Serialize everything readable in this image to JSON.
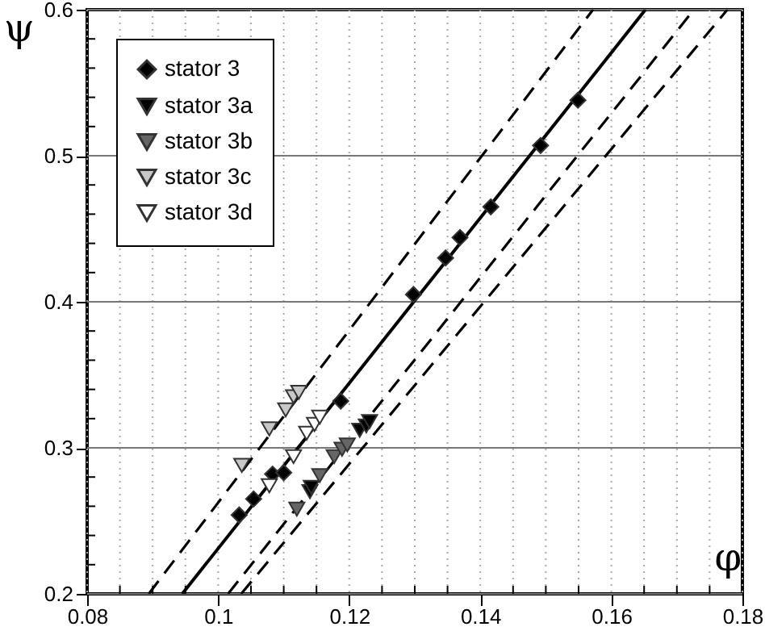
{
  "chart_data": {
    "type": "scatter",
    "xlabel": "φ",
    "ylabel": "ψ",
    "xlim": [
      0.08,
      0.18
    ],
    "ylim": [
      0.2,
      0.6
    ],
    "xticks": [
      0.08,
      {
        "value": 0.085,
        "label": null
      },
      {
        "value": 0.09,
        "label": null
      },
      {
        "value": 0.095,
        "label": null
      },
      0.1,
      {
        "value": 0.105,
        "label": null
      },
      {
        "value": 0.11,
        "label": null
      },
      {
        "value": 0.115,
        "label": null
      },
      0.12,
      {
        "value": 0.125,
        "label": null
      },
      {
        "value": 0.13,
        "label": null
      },
      {
        "value": 0.135,
        "label": null
      },
      0.14,
      {
        "value": 0.145,
        "label": null
      },
      {
        "value": 0.15,
        "label": null
      },
      {
        "value": 0.155,
        "label": null
      },
      0.16,
      {
        "value": 0.165,
        "label": null
      },
      {
        "value": 0.17,
        "label": null
      },
      {
        "value": 0.175,
        "label": null
      },
      0.18
    ],
    "yticks": [
      0.2,
      {
        "value": 0.22,
        "label": null
      },
      {
        "value": 0.24,
        "label": null
      },
      {
        "value": 0.26,
        "label": null
      },
      {
        "value": 0.28,
        "label": null
      },
      0.3,
      {
        "value": 0.32,
        "label": null
      },
      {
        "value": 0.34,
        "label": null
      },
      {
        "value": 0.36,
        "label": null
      },
      {
        "value": 0.38,
        "label": null
      },
      0.4,
      {
        "value": 0.42,
        "label": null
      },
      {
        "value": 0.44,
        "label": null
      },
      {
        "value": 0.46,
        "label": null
      },
      {
        "value": 0.48,
        "label": null
      },
      0.5,
      {
        "value": 0.52,
        "label": null
      },
      {
        "value": 0.54,
        "label": null
      },
      {
        "value": 0.56,
        "label": null
      },
      {
        "value": 0.58,
        "label": null
      },
      0.6
    ],
    "grid": true,
    "legend": "top left",
    "series": [
      {
        "type": "line",
        "color": "#000000",
        "line_style": "solid",
        "x": [
          0.0945,
          0.1652
        ],
        "values": [
          0.2,
          0.6
        ]
      },
      {
        "type": "line",
        "color": "#000000",
        "line_style": "dashed",
        "x": [
          0.0894,
          0.1572
        ],
        "values": [
          0.2,
          0.6
        ]
      },
      {
        "type": "line",
        "color": "#000000",
        "line_style": "dashed",
        "x": [
          0.1015,
          0.1726
        ],
        "values": [
          0.2,
          0.6
        ]
      },
      {
        "type": "line",
        "color": "#000000",
        "line_style": "dashed",
        "x": [
          0.1035,
          0.1777
        ],
        "values": [
          0.2,
          0.6
        ]
      },
      {
        "name": "stator 3",
        "marker": "diamond",
        "color": "#000000",
        "x": [
          0.1032,
          0.1054,
          0.1083,
          0.11,
          0.1187,
          0.1298,
          0.1347,
          0.1369,
          0.1416,
          0.1492,
          0.1549
        ],
        "values": [
          0.254,
          0.265,
          0.282,
          0.283,
          0.332,
          0.405,
          0.43,
          0.444,
          0.465,
          0.507,
          0.538
        ]
      },
      {
        "name": "stator 3a",
        "marker": "triangle",
        "color": "#000000",
        "x": [
          0.114,
          0.1142,
          0.1216,
          0.1226,
          0.1231
        ],
        "values": [
          0.27,
          0.273,
          0.312,
          0.315,
          0.318
        ]
      },
      {
        "name": "stator 3b",
        "marker": "triangle",
        "color": "#666666",
        "x": [
          0.112,
          0.1155,
          0.1177,
          0.1189,
          0.1197
        ],
        "values": [
          0.258,
          0.281,
          0.294,
          0.299,
          0.302
        ]
      },
      {
        "name": "stator 3c",
        "marker": "triangle",
        "color": "#c8c8c8",
        "x": [
          0.1036,
          0.1078,
          0.1103,
          0.1115,
          0.1123
        ],
        "values": [
          0.288,
          0.313,
          0.326,
          0.335,
          0.338
        ]
      },
      {
        "name": "stator 3d",
        "marker": "triangle",
        "color": "#ffffff",
        "x": [
          0.1078,
          0.1115,
          0.1135,
          0.1147,
          0.1155
        ],
        "values": [
          0.274,
          0.294,
          0.31,
          0.316,
          0.321
        ]
      }
    ]
  }
}
